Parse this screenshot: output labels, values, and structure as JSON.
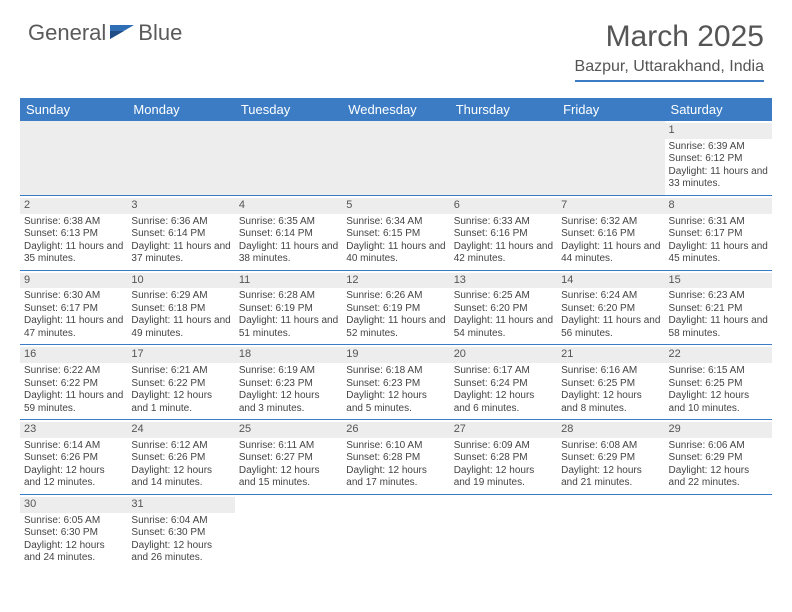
{
  "logo": {
    "text1": "General",
    "text2": "Blue"
  },
  "title": "March 2025",
  "location": "Bazpur, Uttarakhand, India",
  "colors": {
    "header_bg": "#3b7cc4",
    "header_text": "#ffffff",
    "daynum_bg": "#ededed",
    "body_text": "#444444",
    "border": "#3b7cc4"
  },
  "day_headers": [
    "Sunday",
    "Monday",
    "Tuesday",
    "Wednesday",
    "Thursday",
    "Friday",
    "Saturday"
  ],
  "weeks": [
    [
      null,
      null,
      null,
      null,
      null,
      null,
      {
        "n": "1",
        "sr": "6:39 AM",
        "ss": "6:12 PM",
        "dl": "11 hours and 33 minutes."
      }
    ],
    [
      {
        "n": "2",
        "sr": "6:38 AM",
        "ss": "6:13 PM",
        "dl": "11 hours and 35 minutes."
      },
      {
        "n": "3",
        "sr": "6:36 AM",
        "ss": "6:14 PM",
        "dl": "11 hours and 37 minutes."
      },
      {
        "n": "4",
        "sr": "6:35 AM",
        "ss": "6:14 PM",
        "dl": "11 hours and 38 minutes."
      },
      {
        "n": "5",
        "sr": "6:34 AM",
        "ss": "6:15 PM",
        "dl": "11 hours and 40 minutes."
      },
      {
        "n": "6",
        "sr": "6:33 AM",
        "ss": "6:16 PM",
        "dl": "11 hours and 42 minutes."
      },
      {
        "n": "7",
        "sr": "6:32 AM",
        "ss": "6:16 PM",
        "dl": "11 hours and 44 minutes."
      },
      {
        "n": "8",
        "sr": "6:31 AM",
        "ss": "6:17 PM",
        "dl": "11 hours and 45 minutes."
      }
    ],
    [
      {
        "n": "9",
        "sr": "6:30 AM",
        "ss": "6:17 PM",
        "dl": "11 hours and 47 minutes."
      },
      {
        "n": "10",
        "sr": "6:29 AM",
        "ss": "6:18 PM",
        "dl": "11 hours and 49 minutes."
      },
      {
        "n": "11",
        "sr": "6:28 AM",
        "ss": "6:19 PM",
        "dl": "11 hours and 51 minutes."
      },
      {
        "n": "12",
        "sr": "6:26 AM",
        "ss": "6:19 PM",
        "dl": "11 hours and 52 minutes."
      },
      {
        "n": "13",
        "sr": "6:25 AM",
        "ss": "6:20 PM",
        "dl": "11 hours and 54 minutes."
      },
      {
        "n": "14",
        "sr": "6:24 AM",
        "ss": "6:20 PM",
        "dl": "11 hours and 56 minutes."
      },
      {
        "n": "15",
        "sr": "6:23 AM",
        "ss": "6:21 PM",
        "dl": "11 hours and 58 minutes."
      }
    ],
    [
      {
        "n": "16",
        "sr": "6:22 AM",
        "ss": "6:22 PM",
        "dl": "11 hours and 59 minutes."
      },
      {
        "n": "17",
        "sr": "6:21 AM",
        "ss": "6:22 PM",
        "dl": "12 hours and 1 minute."
      },
      {
        "n": "18",
        "sr": "6:19 AM",
        "ss": "6:23 PM",
        "dl": "12 hours and 3 minutes."
      },
      {
        "n": "19",
        "sr": "6:18 AM",
        "ss": "6:23 PM",
        "dl": "12 hours and 5 minutes."
      },
      {
        "n": "20",
        "sr": "6:17 AM",
        "ss": "6:24 PM",
        "dl": "12 hours and 6 minutes."
      },
      {
        "n": "21",
        "sr": "6:16 AM",
        "ss": "6:25 PM",
        "dl": "12 hours and 8 minutes."
      },
      {
        "n": "22",
        "sr": "6:15 AM",
        "ss": "6:25 PM",
        "dl": "12 hours and 10 minutes."
      }
    ],
    [
      {
        "n": "23",
        "sr": "6:14 AM",
        "ss": "6:26 PM",
        "dl": "12 hours and 12 minutes."
      },
      {
        "n": "24",
        "sr": "6:12 AM",
        "ss": "6:26 PM",
        "dl": "12 hours and 14 minutes."
      },
      {
        "n": "25",
        "sr": "6:11 AM",
        "ss": "6:27 PM",
        "dl": "12 hours and 15 minutes."
      },
      {
        "n": "26",
        "sr": "6:10 AM",
        "ss": "6:28 PM",
        "dl": "12 hours and 17 minutes."
      },
      {
        "n": "27",
        "sr": "6:09 AM",
        "ss": "6:28 PM",
        "dl": "12 hours and 19 minutes."
      },
      {
        "n": "28",
        "sr": "6:08 AM",
        "ss": "6:29 PM",
        "dl": "12 hours and 21 minutes."
      },
      {
        "n": "29",
        "sr": "6:06 AM",
        "ss": "6:29 PM",
        "dl": "12 hours and 22 minutes."
      }
    ],
    [
      {
        "n": "30",
        "sr": "6:05 AM",
        "ss": "6:30 PM",
        "dl": "12 hours and 24 minutes."
      },
      {
        "n": "31",
        "sr": "6:04 AM",
        "ss": "6:30 PM",
        "dl": "12 hours and 26 minutes."
      },
      null,
      null,
      null,
      null,
      null
    ]
  ],
  "labels": {
    "sunrise": "Sunrise:",
    "sunset": "Sunset:",
    "daylight": "Daylight:"
  }
}
